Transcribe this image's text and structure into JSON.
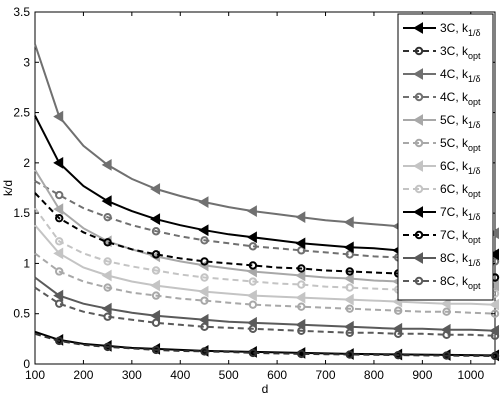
{
  "chart_data": {
    "type": "line",
    "title": "",
    "xlabel": "d",
    "ylabel": "k/d",
    "xlim": [
      100,
      1050
    ],
    "ylim": [
      0,
      3.5
    ],
    "x_ticks": [
      100,
      200,
      300,
      400,
      500,
      600,
      700,
      800,
      900,
      1000
    ],
    "y_ticks": [
      0,
      0.5,
      1,
      1.5,
      2,
      2.5,
      3,
      3.5
    ],
    "x_tick_labels": [
      "100",
      "200",
      "300",
      "400",
      "500",
      "600",
      "700",
      "800",
      "900",
      "1000"
    ],
    "y_tick_labels": [
      "0",
      "0.5",
      "1",
      "1.5",
      "2",
      "2.5",
      "3",
      "3.5"
    ],
    "grid": false,
    "legend_position": "top-right",
    "x": [
      100,
      150,
      200,
      250,
      300,
      350,
      400,
      450,
      500,
      550,
      600,
      650,
      700,
      750,
      800,
      850,
      900,
      950,
      1000,
      1050
    ],
    "series": [
      {
        "name": "3C, k",
        "subscript": "1/δ",
        "color": "#000000",
        "dash": "solid",
        "marker": "triangle-left",
        "values": [
          0.32,
          0.24,
          0.2,
          0.18,
          0.16,
          0.15,
          0.14,
          0.13,
          0.125,
          0.12,
          0.115,
          0.11,
          0.105,
          0.1,
          0.098,
          0.095,
          0.093,
          0.09,
          0.088,
          0.086
        ]
      },
      {
        "name": "3C, k",
        "subscript": "opt",
        "color": "#303030",
        "dash": "dashed",
        "marker": "circle",
        "values": [
          0.3,
          0.23,
          0.19,
          0.17,
          0.155,
          0.14,
          0.13,
          0.125,
          0.12,
          0.11,
          0.105,
          0.1,
          0.097,
          0.094,
          0.091,
          0.088,
          0.086,
          0.084,
          0.082,
          0.08
        ]
      },
      {
        "name": "4C, k",
        "subscript": "1/δ",
        "color": "#707070",
        "dash": "solid",
        "marker": "triangle-left",
        "values": [
          3.18,
          2.46,
          2.17,
          1.98,
          1.84,
          1.74,
          1.67,
          1.61,
          1.56,
          1.52,
          1.49,
          1.46,
          1.43,
          1.41,
          1.39,
          1.37,
          1.35,
          1.33,
          1.32,
          1.3
        ]
      },
      {
        "name": "4C, k",
        "subscript": "opt",
        "color": "#707070",
        "dash": "dashed",
        "marker": "circle",
        "values": [
          1.82,
          1.68,
          1.55,
          1.46,
          1.38,
          1.32,
          1.27,
          1.23,
          1.2,
          1.17,
          1.15,
          1.13,
          1.11,
          1.09,
          1.07,
          1.06,
          1.05,
          1.04,
          1.03,
          1.02
        ]
      },
      {
        "name": "5C, k",
        "subscript": "1/δ",
        "color": "#a8a8a8",
        "dash": "solid",
        "marker": "triangle-left",
        "values": [
          1.93,
          1.54,
          1.35,
          1.22,
          1.14,
          1.07,
          1.02,
          0.98,
          0.95,
          0.92,
          0.9,
          0.88,
          0.86,
          0.85,
          0.83,
          0.82,
          0.81,
          0.8,
          0.79,
          0.78
        ]
      },
      {
        "name": "5C, k",
        "subscript": "opt",
        "color": "#a8a8a8",
        "dash": "dashed",
        "marker": "circle",
        "values": [
          1.1,
          0.92,
          0.82,
          0.76,
          0.71,
          0.68,
          0.65,
          0.63,
          0.61,
          0.59,
          0.58,
          0.57,
          0.56,
          0.55,
          0.54,
          0.53,
          0.52,
          0.52,
          0.51,
          0.5
        ]
      },
      {
        "name": "6C, k",
        "subscript": "1/δ",
        "color": "#c4c4c4",
        "dash": "solid",
        "marker": "triangle-left",
        "values": [
          1.38,
          1.1,
          0.96,
          0.88,
          0.82,
          0.78,
          0.75,
          0.72,
          0.7,
          0.68,
          0.67,
          0.66,
          0.65,
          0.64,
          0.63,
          0.62,
          0.61,
          0.6,
          0.6,
          0.59
        ]
      },
      {
        "name": "6C, k",
        "subscript": "opt",
        "color": "#c4c4c4",
        "dash": "dashed",
        "marker": "circle",
        "values": [
          1.55,
          1.22,
          1.1,
          1.02,
          0.97,
          0.93,
          0.89,
          0.86,
          0.84,
          0.82,
          0.8,
          0.79,
          0.77,
          0.76,
          0.75,
          0.74,
          0.73,
          0.72,
          0.71,
          0.7
        ]
      },
      {
        "name": "7C, k",
        "subscript": "1/δ",
        "color": "#000000",
        "dash": "solid",
        "marker": "triangle-left",
        "values": [
          2.47,
          2.0,
          1.77,
          1.62,
          1.52,
          1.44,
          1.38,
          1.33,
          1.29,
          1.26,
          1.23,
          1.2,
          1.18,
          1.16,
          1.15,
          1.13,
          1.12,
          1.11,
          1.1,
          1.09
        ]
      },
      {
        "name": "7C, k",
        "subscript": "opt",
        "color": "#000000",
        "dash": "dashed",
        "marker": "circle",
        "values": [
          1.7,
          1.45,
          1.31,
          1.21,
          1.14,
          1.09,
          1.05,
          1.02,
          1.0,
          0.98,
          0.96,
          0.95,
          0.93,
          0.92,
          0.91,
          0.9,
          0.89,
          0.88,
          0.87,
          0.86
        ]
      },
      {
        "name": "8C, k",
        "subscript": "1/δ",
        "color": "#5a5a5a",
        "dash": "solid",
        "marker": "triangle-left",
        "values": [
          0.86,
          0.68,
          0.6,
          0.55,
          0.51,
          0.48,
          0.46,
          0.44,
          0.42,
          0.41,
          0.4,
          0.39,
          0.38,
          0.37,
          0.36,
          0.35,
          0.35,
          0.34,
          0.34,
          0.33
        ]
      },
      {
        "name": "8C, k",
        "subscript": "opt",
        "color": "#5a5a5a",
        "dash": "dashed",
        "marker": "circle",
        "values": [
          0.76,
          0.6,
          0.52,
          0.47,
          0.44,
          0.41,
          0.39,
          0.37,
          0.36,
          0.35,
          0.34,
          0.33,
          0.32,
          0.31,
          0.31,
          0.3,
          0.3,
          0.29,
          0.29,
          0.28
        ]
      }
    ]
  }
}
